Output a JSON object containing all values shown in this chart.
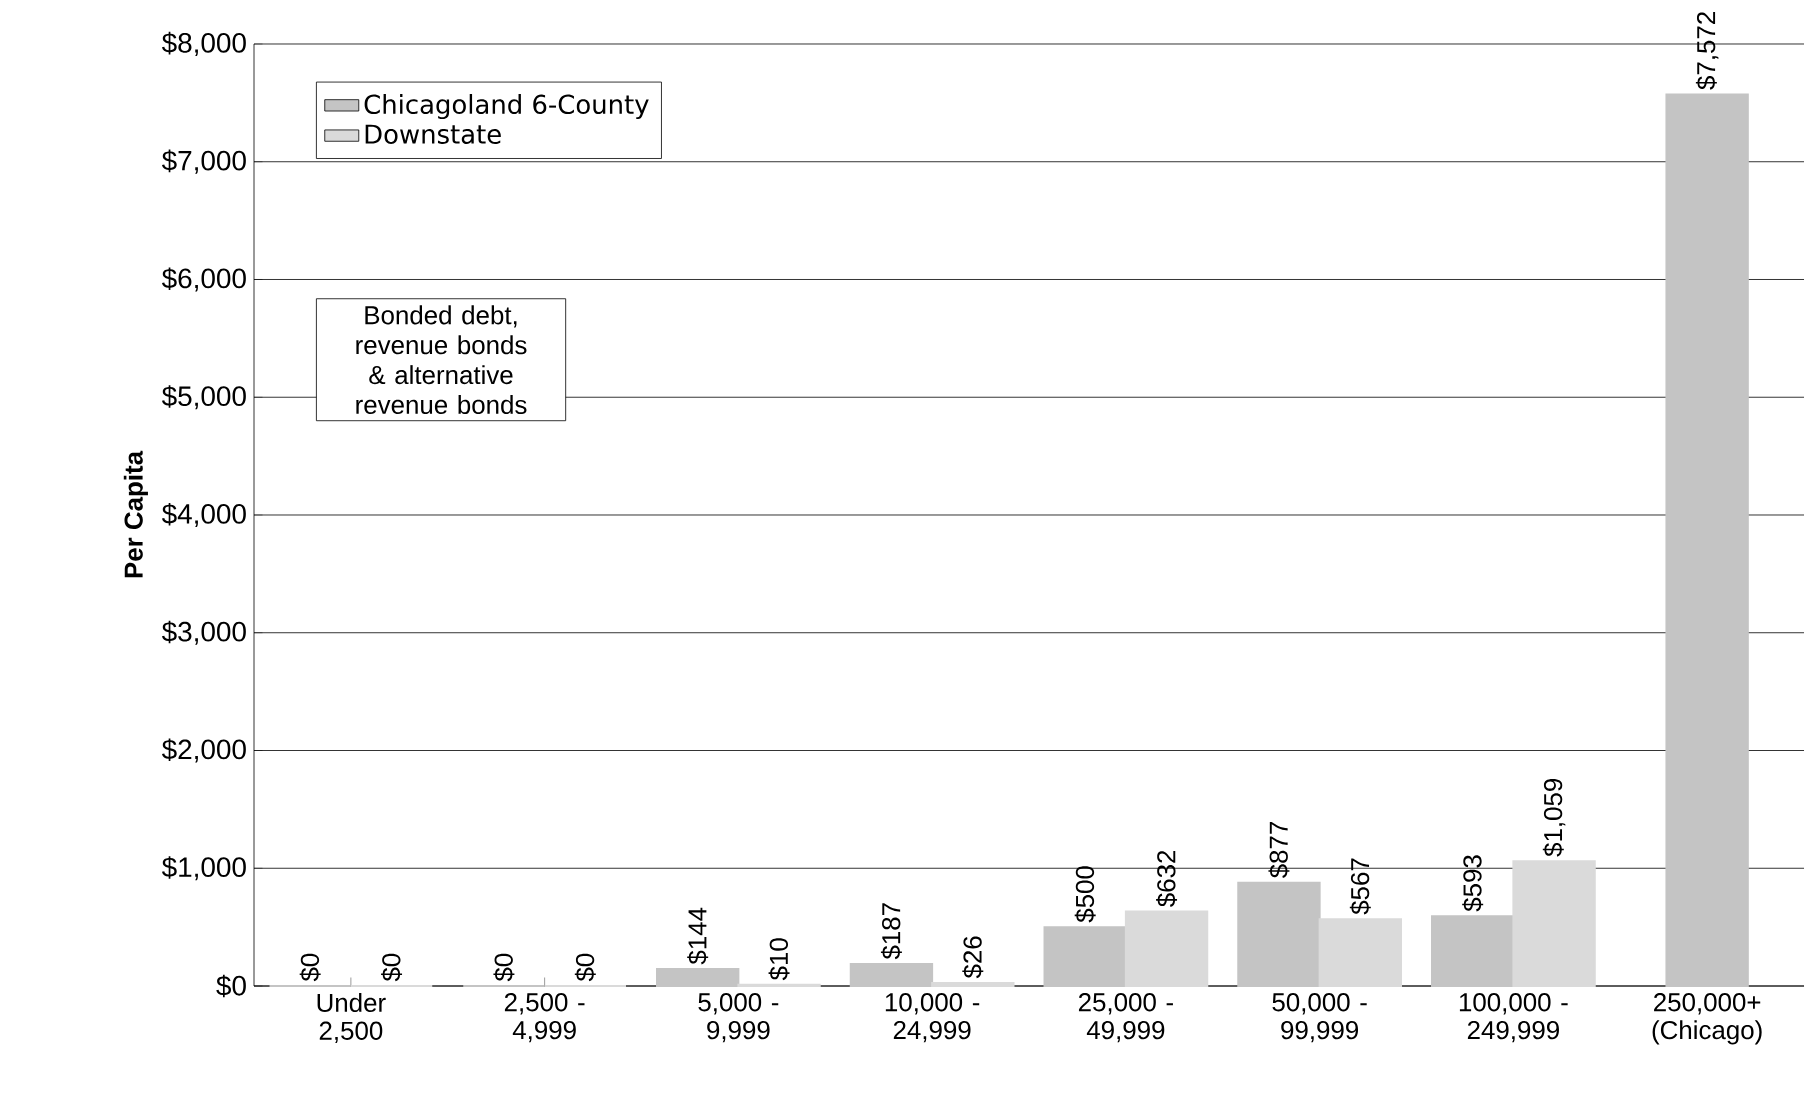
{
  "chart_data": {
    "type": "bar",
    "ylabel": "Per Capita",
    "categories": [
      "Under 2,500",
      "2,500 - 4,999",
      "5,000 - 9,999",
      "10,000 - 24,999",
      "25,000 - 49,999",
      "50,000 - 99,999",
      "100,000 - 249,999",
      "250,000+ (Chicago)"
    ],
    "series": [
      {
        "name": "Chicagoland 6-County",
        "color": "#c4c4c4",
        "values": [
          0,
          0,
          144,
          187,
          500,
          877,
          593,
          7572
        ],
        "value_labels": [
          "$0",
          "$0",
          "$144",
          "$187",
          "$500",
          "$877",
          "$593",
          "$7,572"
        ]
      },
      {
        "name": "Downstate",
        "color": "#dadada",
        "values": [
          0,
          0,
          10,
          26,
          632,
          567,
          1059,
          null
        ],
        "value_labels": [
          "$0",
          "$0",
          "$10",
          "$26",
          "$632",
          "$567",
          "$1,059",
          null
        ]
      }
    ],
    "ylim": [
      0,
      8000
    ],
    "yticks": [
      {
        "value": 0,
        "label": "$0"
      },
      {
        "value": 1000,
        "label": "$1,000"
      },
      {
        "value": 2000,
        "label": "$2,000"
      },
      {
        "value": 3000,
        "label": "$3,000"
      },
      {
        "value": 4000,
        "label": "$4,000"
      },
      {
        "value": 5000,
        "label": "$5,000"
      },
      {
        "value": 6000,
        "label": "$6,000"
      },
      {
        "value": 7000,
        "label": "$7,000"
      },
      {
        "value": 8000,
        "label": "$8,000"
      }
    ],
    "grid": "y",
    "legend": "top left",
    "annotations": [
      "Bonded debt, revenue bonds & alternative revenue bonds"
    ]
  }
}
